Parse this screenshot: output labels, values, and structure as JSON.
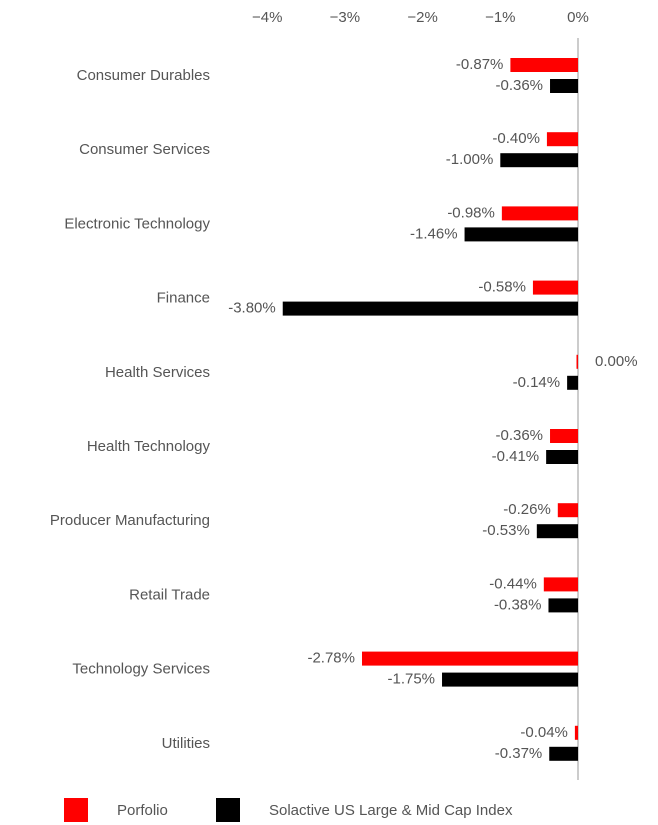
{
  "chart_data": {
    "type": "bar",
    "orientation": "horizontal",
    "categories": [
      "Consumer Durables",
      "Consumer Services",
      "Electronic Technology",
      "Finance",
      "Health Services",
      "Health Technology",
      "Producer Manufacturing",
      "Retail Trade",
      "Technology Services",
      "Utilities"
    ],
    "series": [
      {
        "name": "Porfolio",
        "color": "#ff0000",
        "values": [
          -0.87,
          -0.4,
          -0.98,
          -0.58,
          0.0,
          -0.36,
          -0.26,
          -0.44,
          -2.78,
          -0.04
        ],
        "value_labels": [
          "-0.87%",
          "-0.40%",
          "-0.98%",
          "-0.58%",
          "0.00%",
          "-0.36%",
          "-0.26%",
          "-0.44%",
          "-2.78%",
          "-0.04%"
        ]
      },
      {
        "name": "Solactive US Large & Mid Cap Index",
        "color": "#000000",
        "values": [
          -0.36,
          -1.0,
          -1.46,
          -3.8,
          -0.14,
          -0.41,
          -0.53,
          -0.38,
          -1.75,
          -0.37
        ],
        "value_labels": [
          "-0.36%",
          "-1.00%",
          "-1.46%",
          "-3.80%",
          "-0.14%",
          "-0.41%",
          "-0.53%",
          "-0.38%",
          "-1.75%",
          "-0.37%"
        ]
      }
    ],
    "xlim": [
      -4,
      0
    ],
    "xticks": [
      {
        "value": -4,
        "label": "−4%"
      },
      {
        "value": -3,
        "label": "−3%"
      },
      {
        "value": -2,
        "label": "−2%"
      },
      {
        "value": -1,
        "label": "−1%"
      },
      {
        "value": 0,
        "label": "0%"
      }
    ],
    "grid": false,
    "legend": "bottom"
  }
}
